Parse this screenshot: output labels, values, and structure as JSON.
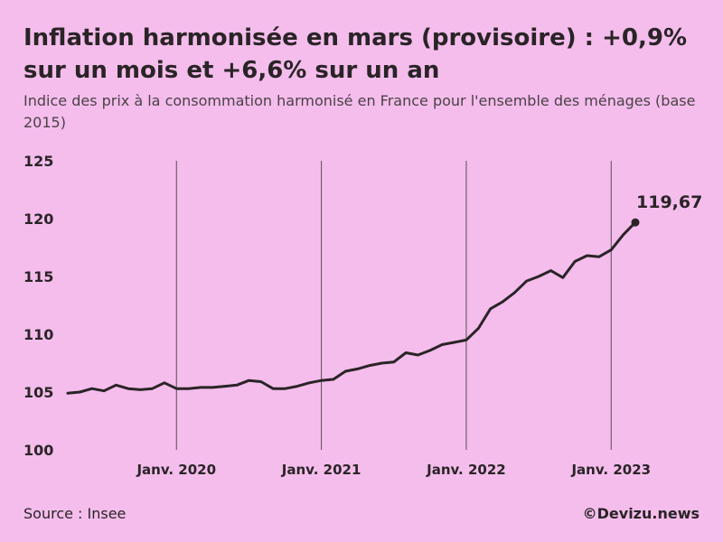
{
  "header": {
    "title": "Inflation harmonisée en mars (provisoire) : +0,9% sur un mois et +6,6% sur un an",
    "subtitle": "Indice des prix à la consommation harmonisé en France pour l'ensemble des ménages (base 2015)"
  },
  "footer": {
    "source": "Source : Insee",
    "credit": "©Devizu.news"
  },
  "colors": {
    "background": "#f4bdec",
    "line": "#2a2426",
    "text": "#2a2426"
  },
  "chart_data": {
    "type": "line",
    "title": "",
    "xlabel": "",
    "ylabel": "",
    "ylim": [
      100,
      125
    ],
    "yticks": [
      100,
      105,
      110,
      115,
      120,
      125
    ],
    "xticks": [
      {
        "index": 9,
        "label": "Janv. 2020"
      },
      {
        "index": 21,
        "label": "Janv. 2021"
      },
      {
        "index": 33,
        "label": "Janv. 2022"
      },
      {
        "index": 45,
        "label": "Janv. 2023"
      }
    ],
    "x_start": "2019-04",
    "x_end": "2023-03",
    "grid": "vertical lines at January of each year",
    "series": [
      {
        "values": [
          104.9,
          105.0,
          105.3,
          105.1,
          105.6,
          105.3,
          105.2,
          105.3,
          105.8,
          105.3,
          105.3,
          105.4,
          105.4,
          105.5,
          105.6,
          106.0,
          105.9,
          105.3,
          105.3,
          105.5,
          105.8,
          106.0,
          106.1,
          106.8,
          107.0,
          107.3,
          107.5,
          107.6,
          108.4,
          108.2,
          108.6,
          109.1,
          109.3,
          109.5,
          110.5,
          112.2,
          112.8,
          113.6,
          114.6,
          115.0,
          115.5,
          114.9,
          116.3,
          116.8,
          116.7,
          117.3,
          118.6,
          119.67
        ]
      }
    ],
    "annotations": [
      {
        "index": 47,
        "label": "119,67"
      }
    ]
  }
}
